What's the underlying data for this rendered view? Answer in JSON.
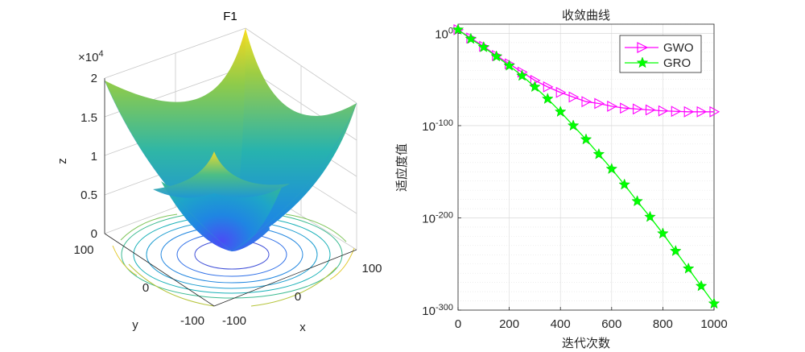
{
  "colors": {
    "gwo": "#ff00ff",
    "gro": "#00ff00",
    "axis": "#262626",
    "grid": "#d9d9d9"
  },
  "chart_data": [
    {
      "type": "surface",
      "title": "F1",
      "function": "z = x^2 + y^2",
      "xlabel": "x",
      "ylabel": "y",
      "zlabel": "z",
      "xlim": [
        -100,
        100
      ],
      "ylim": [
        -100,
        100
      ],
      "zlim": [
        0,
        20000
      ],
      "xticks": [
        "-100",
        "0",
        "100"
      ],
      "yticks": [
        "-100",
        "0",
        "100"
      ],
      "zticks": [
        "0",
        "0.5",
        "1",
        "1.5",
        "2"
      ],
      "zscale_label": "×10",
      "zscale_exponent": "4",
      "contour_on_floor": true,
      "colormap": "parula"
    },
    {
      "type": "line",
      "title": "收敛曲线",
      "xlabel": "迭代次数",
      "ylabel": "适应度值",
      "xlim": [
        0,
        1000
      ],
      "ylim_log10": [
        -300,
        10
      ],
      "yscale": "log",
      "xticks": [
        "0",
        "200",
        "400",
        "600",
        "800",
        "1000"
      ],
      "yticks": [
        {
          "base": "10",
          "exp": "0",
          "value": 0
        },
        {
          "base": "10",
          "exp": "-100",
          "value": -100
        },
        {
          "base": "10",
          "exp": "-200",
          "value": -200
        },
        {
          "base": "10",
          "exp": "-300",
          "value": -300
        }
      ],
      "grid": true,
      "legend_position": "top-right",
      "series": [
        {
          "name": "GWO",
          "marker": "triangle-right",
          "x": [
            0,
            50,
            100,
            150,
            200,
            250,
            300,
            350,
            400,
            450,
            500,
            550,
            600,
            650,
            700,
            750,
            800,
            850,
            900,
            950,
            1000
          ],
          "log10_y": [
            4,
            -5,
            -14,
            -24,
            -33,
            -42,
            -51,
            -58,
            -64,
            -69,
            -74,
            -76,
            -79,
            -81,
            -82,
            -83,
            -84,
            -84.5,
            -85,
            -85,
            -85
          ]
        },
        {
          "name": "GRO",
          "marker": "star",
          "x": [
            0,
            50,
            100,
            150,
            200,
            250,
            300,
            350,
            400,
            450,
            500,
            550,
            600,
            650,
            700,
            750,
            800,
            850,
            900,
            950,
            1000
          ],
          "log10_y": [
            4,
            -6,
            -15,
            -25,
            -35,
            -46,
            -58,
            -71,
            -85,
            -100,
            -115,
            -131,
            -147,
            -164,
            -182,
            -199,
            -217,
            -236,
            -255,
            -274,
            -293
          ]
        }
      ]
    }
  ]
}
